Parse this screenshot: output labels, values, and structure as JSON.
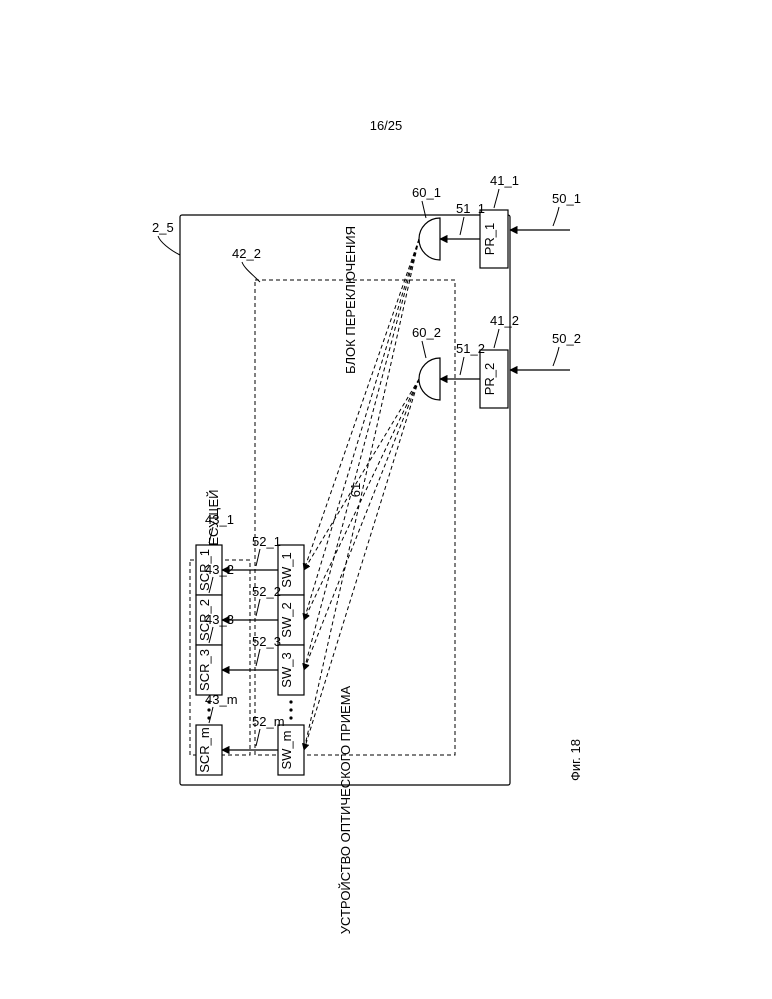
{
  "page_number": "16/25",
  "figure_label": "Фиг. 18",
  "device_label": "УСТРОЙСТВО ОПТИЧЕСКОГО ПРИЕМА",
  "device_ref": "2_5",
  "switch_block": {
    "label": "БЛОК ПЕРЕКЛЮЧЕНИЯ",
    "ref": "42_2"
  },
  "scr_block": {
    "label": "БЛОК ПРИЕМА ПОДНЕСУЩЕЙ"
  },
  "inputs": [
    {
      "ref": "50_1"
    },
    {
      "ref": "50_2"
    }
  ],
  "pr": [
    {
      "label": "PR_1",
      "ref": "41_1"
    },
    {
      "label": "PR_2",
      "ref": "41_2"
    }
  ],
  "sig51": [
    {
      "ref": "51_1"
    },
    {
      "ref": "51_2"
    }
  ],
  "splitters": [
    {
      "ref": "60_1"
    },
    {
      "ref": "60_2"
    }
  ],
  "fan_ref": "61",
  "sw": [
    {
      "label": "SW_1",
      "ref52": "52_1"
    },
    {
      "label": "SW_2",
      "ref52": "52_2"
    },
    {
      "label": "SW_3",
      "ref52": "52_3"
    },
    {
      "dots": true
    },
    {
      "label": "SW_m",
      "ref52": "52_m"
    }
  ],
  "scr": [
    {
      "label": "SCR_1",
      "ref": "43_1"
    },
    {
      "label": "SCR_2",
      "ref": "43_2"
    },
    {
      "label": "SCR_3",
      "ref": "43_3"
    },
    {
      "dots": true
    },
    {
      "label": "SCR_m",
      "ref": "43_m"
    }
  ],
  "colors": {
    "stroke": "#000000",
    "bg": "#ffffff"
  }
}
